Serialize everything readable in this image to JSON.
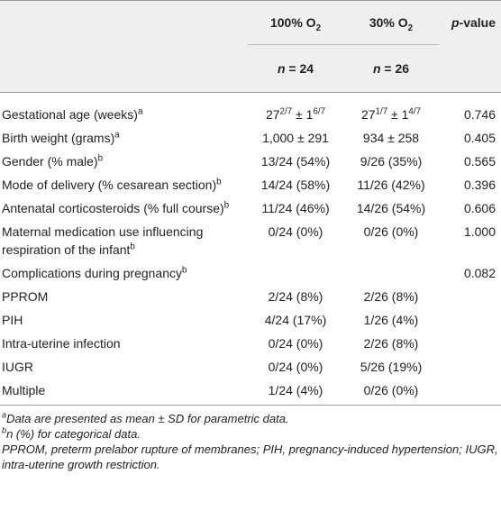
{
  "table": {
    "header": [
      [
        null,
        {
          "text": "100% O",
          "sub": "2"
        },
        {
          "text": "30% O",
          "sub": "2"
        },
        {
          "em": "p",
          "text": "-value"
        }
      ],
      [
        null,
        {
          "em": "n",
          "text": " = 24"
        },
        {
          "em": "n",
          "text": " = 26"
        },
        null
      ]
    ],
    "rows": [
      [
        {
          "text": "Gestational age (weeks)",
          "sup": "a"
        },
        [
          {
            "text": "27",
            "sup": "2/7"
          },
          {
            "text": " ± 1",
            "sup": "6/7"
          }
        ],
        [
          {
            "text": "27",
            "sup": "1/7"
          },
          {
            "text": " ± 1",
            "sup": "4/7"
          }
        ],
        "0.746"
      ],
      [
        {
          "text": "Birth weight (grams)",
          "sup": "a"
        },
        "1,000 ± 291",
        "934 ± 258",
        "0.405"
      ],
      [
        {
          "text": "Gender (% male)",
          "sup": "b"
        },
        "13/24 (54%)",
        "9/26 (35%)",
        "0.565"
      ],
      [
        {
          "text": "Mode of delivery (% cesarean section)",
          "sup": "b"
        },
        "14/24 (58%)",
        "11/26 (42%)",
        "0.396"
      ],
      [
        {
          "text": "Antenatal corticosteroids (% full course)",
          "sup": "b"
        },
        "11/24 (46%)",
        "14/26 (54%)",
        "0.606"
      ],
      [
        {
          "text": "Maternal medication use influencing respiration of the infant",
          "sup": "b"
        },
        "0/24 (0%)",
        "0/26 (0%)",
        "1.000"
      ],
      [
        {
          "text": "Complications during pregnancy",
          "sup": "b"
        },
        null,
        null,
        "0.082"
      ],
      [
        "PPROM",
        "2/24 (8%)",
        "2/26 (8%)",
        null
      ],
      [
        "PIH",
        "4/24 (17%)",
        "1/26 (4%)",
        null
      ],
      [
        "Intra-uterine infection",
        "0/24 (0%)",
        "2/26 (8%)",
        null
      ],
      [
        "IUGR",
        "0/24 (0%)",
        "5/26 (19%)",
        null
      ],
      [
        "Multiple",
        "1/24 (4%)",
        "0/26 (0%)",
        null
      ]
    ]
  },
  "footnotes": [
    {
      "sup": "a",
      "text": "Data are presented as mean ± SD for parametric data."
    },
    {
      "sup": "b",
      "em": "n",
      "text": " (%) for categorical data."
    },
    "PPROM, preterm prelabor rupture of membranes; PIH, pregnancy-induced hypertension; IUGR, intra-uterine growth restriction."
  ]
}
